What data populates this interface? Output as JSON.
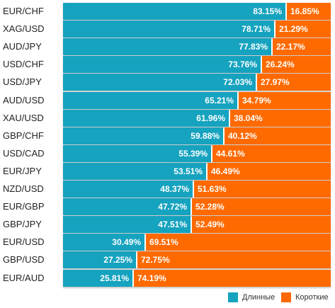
{
  "colors": {
    "long": "#16a3bf",
    "short": "#ff6a00",
    "text": "#222222"
  },
  "legend": {
    "long_label": "Длинные",
    "short_label": "Короткие"
  },
  "chart_data": {
    "type": "bar",
    "orientation": "horizontal",
    "stacked": true,
    "value_unit": "%",
    "categories": [
      "EUR/CHF",
      "XAG/USD",
      "AUD/JPY",
      "USD/CHF",
      "USD/JPY",
      "AUD/USD",
      "XAU/USD",
      "GBP/CHF",
      "USD/CAD",
      "EUR/JPY",
      "NZD/USD",
      "EUR/GBP",
      "GBP/JPY",
      "EUR/USD",
      "GBP/USD",
      "EUR/AUD"
    ],
    "series": [
      {
        "name": "Длинные",
        "color": "#16a3bf",
        "values": [
          83.15,
          78.71,
          77.83,
          73.76,
          72.03,
          65.21,
          61.96,
          59.88,
          55.39,
          53.51,
          48.37,
          47.72,
          47.51,
          30.49,
          27.25,
          25.81
        ],
        "labels": [
          "83.15%",
          "78.71%",
          "77.83%",
          "73.76%",
          "72.03%",
          "65.21%",
          "61.96%",
          "59.88%",
          "55.39%",
          "53.51%",
          "48.37%",
          "47.72%",
          "47.51%",
          "30.49%",
          "27.25%",
          "25.81%"
        ]
      },
      {
        "name": "Короткие",
        "color": "#ff6a00",
        "values": [
          16.85,
          21.29,
          22.17,
          26.24,
          27.97,
          34.79,
          38.04,
          40.12,
          44.61,
          46.49,
          51.63,
          52.28,
          52.49,
          69.51,
          72.75,
          74.19
        ],
        "labels": [
          "16.85%",
          "21.29%",
          "22.17%",
          "26.24%",
          "27.97%",
          "34.79%",
          "38.04%",
          "40.12%",
          "44.61%",
          "46.49%",
          "51.63%",
          "52.28%",
          "52.49%",
          "69.51%",
          "72.75%",
          "74.19%"
        ]
      }
    ],
    "legend_position": "bottom-right"
  }
}
